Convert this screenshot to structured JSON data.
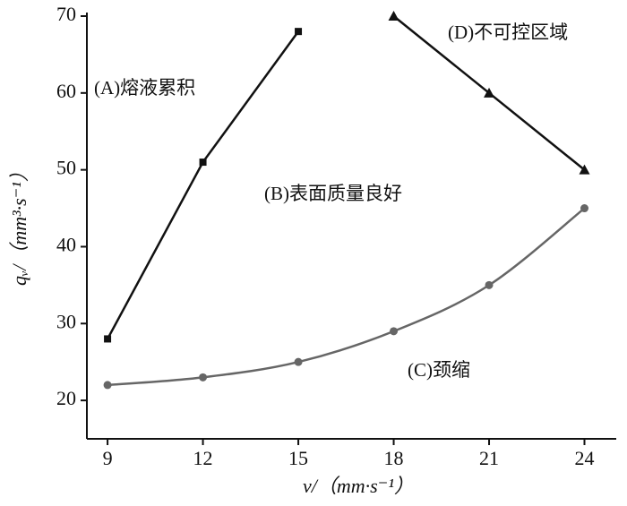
{
  "chart_data": {
    "type": "line",
    "x": [
      9,
      12,
      15,
      18,
      21,
      24
    ],
    "series": [
      {
        "color": "#111111",
        "marker": "square",
        "values": [
          28,
          51,
          68,
          null,
          null,
          null
        ]
      },
      {
        "color": "#111111",
        "marker": "triangle",
        "values": [
          null,
          null,
          null,
          70,
          60,
          50
        ]
      },
      {
        "color": "#666666",
        "marker": "circle",
        "smooth": true,
        "values": [
          22,
          23,
          25,
          29,
          35,
          45
        ]
      }
    ],
    "xlim": [
      8.35,
      25
    ],
    "xticks": [
      9,
      12,
      15,
      18,
      21,
      24
    ],
    "ylim": [
      15,
      70
    ],
    "yticks": [
      20,
      30,
      40,
      50,
      60,
      70
    ],
    "x_label": "v/（mm·s⁻¹）",
    "y_label": "qᵥ/（mm³·s⁻¹）",
    "annotations": [
      "(A)熔液累积",
      "(B)表面质量良好",
      "(C)颈缩",
      "(D)不可控区域"
    ],
    "grid": false
  }
}
